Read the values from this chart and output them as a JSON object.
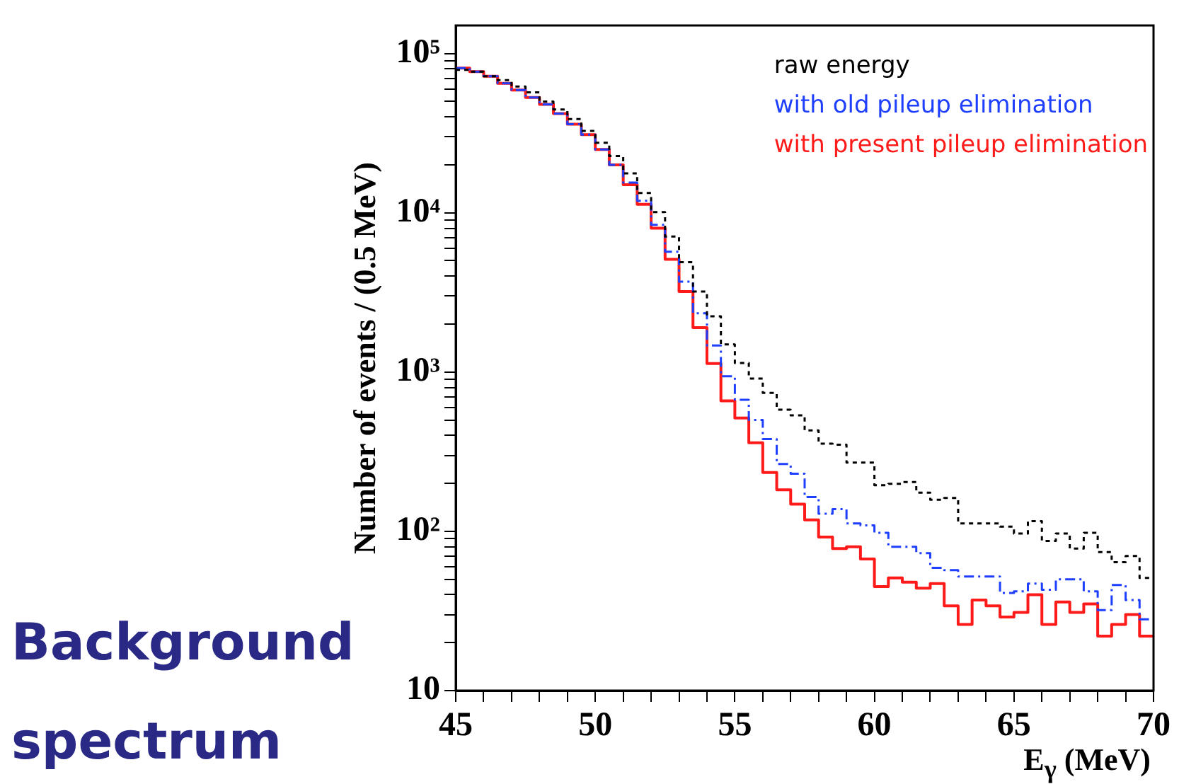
{
  "chart_data": {
    "type": "histogram",
    "title": "Background spectrum",
    "xlabel": "E$_{γ}$ (MeV)",
    "ylabel": "Number of events / (0.5 MeV)",
    "log": "y",
    "legend": "top right",
    "grid": false,
    "bins": [
      45,
      45.5,
      46,
      46.5,
      47,
      47.5,
      48,
      48.5,
      49,
      49.5,
      50,
      50.5,
      51,
      51.5,
      52,
      52.5,
      53,
      53.5,
      54,
      54.5,
      55,
      55.5,
      56,
      56.5,
      57,
      57.5,
      58,
      58.5,
      59,
      59.5,
      60,
      60.5,
      61,
      61.5,
      62,
      62.5,
      63,
      63.5,
      64,
      64.5,
      65,
      65.5,
      66,
      66.5,
      67,
      67.5,
      68,
      68.5,
      69,
      69.5,
      70
    ],
    "xlim": [
      45,
      70
    ],
    "ylim": [
      10,
      150000
    ],
    "xticks": [
      45,
      {
        "value": 46,
        "label": null
      },
      {
        "value": 47,
        "label": null
      },
      {
        "value": 48,
        "label": null
      },
      {
        "value": 49,
        "label": null
      },
      50,
      {
        "value": 51,
        "label": null
      },
      {
        "value": 52,
        "label": null
      },
      {
        "value": 53,
        "label": null
      },
      {
        "value": 54,
        "label": null
      },
      55,
      {
        "value": 56,
        "label": null
      },
      {
        "value": 57,
        "label": null
      },
      {
        "value": 58,
        "label": null
      },
      {
        "value": 59,
        "label": null
      },
      60,
      {
        "value": 61,
        "label": null
      },
      {
        "value": 62,
        "label": null
      },
      {
        "value": 63,
        "label": null
      },
      {
        "value": 64,
        "label": null
      },
      65,
      {
        "value": 66,
        "label": null
      },
      {
        "value": 67,
        "label": null
      },
      {
        "value": 68,
        "label": null
      },
      {
        "value": 69,
        "label": null
      },
      70
    ],
    "yticks": [
      10,
      {
        "value": 20,
        "label": null
      },
      {
        "value": 30,
        "label": null
      },
      {
        "value": 40,
        "label": null
      },
      {
        "value": 50,
        "label": null
      },
      {
        "value": 60,
        "label": null
      },
      {
        "value": 70,
        "label": null
      },
      {
        "value": 80,
        "label": null
      },
      {
        "value": 90,
        "label": null
      },
      {
        "value": 100,
        "label": "10²"
      },
      {
        "value": 200,
        "label": null
      },
      {
        "value": 300,
        "label": null
      },
      {
        "value": 400,
        "label": null
      },
      {
        "value": 500,
        "label": null
      },
      {
        "value": 600,
        "label": null
      },
      {
        "value": 700,
        "label": null
      },
      {
        "value": 800,
        "label": null
      },
      {
        "value": 900,
        "label": null
      },
      {
        "value": 1000,
        "label": "10³"
      },
      {
        "value": 2000,
        "label": null
      },
      {
        "value": 3000,
        "label": null
      },
      {
        "value": 4000,
        "label": null
      },
      {
        "value": 5000,
        "label": null
      },
      {
        "value": 6000,
        "label": null
      },
      {
        "value": 7000,
        "label": null
      },
      {
        "value": 8000,
        "label": null
      },
      {
        "value": 9000,
        "label": null
      },
      {
        "value": 10000,
        "label": "10⁴"
      },
      {
        "value": 20000,
        "label": null
      },
      {
        "value": 30000,
        "label": null
      },
      {
        "value": 40000,
        "label": null
      },
      {
        "value": 50000,
        "label": null
      },
      {
        "value": 60000,
        "label": null
      },
      {
        "value": 70000,
        "label": null
      },
      {
        "value": 80000,
        "label": null
      },
      {
        "value": 90000,
        "label": null
      },
      {
        "value": 100000,
        "label": "10⁵"
      }
    ],
    "series": [
      {
        "name": "raw energy",
        "color": "#000000",
        "line_style": "dotted",
        "values": [
          79000,
          77000,
          72000,
          68000,
          62000,
          57000,
          50000,
          44500,
          38800,
          32700,
          27500,
          22700,
          17700,
          13300,
          10100,
          7100,
          4900,
          3200,
          2240,
          1490,
          1140,
          910,
          740,
          580,
          535,
          430,
          355,
          350,
          270,
          270,
          195,
          199,
          204,
          175,
          158,
          162,
          112,
          112,
          112,
          107,
          97,
          116,
          87,
          97,
          78,
          98,
          74,
          64,
          70,
          51
        ]
      },
      {
        "name": "with old pileup elimination",
        "color": "#1f3fff",
        "line_style": "dashed",
        "values": [
          81000,
          77000,
          72000,
          65000,
          59000,
          53000,
          48000,
          42000,
          36000,
          31000,
          25000,
          20000,
          15500,
          11900,
          8400,
          5700,
          3700,
          2340,
          1470,
          940,
          670,
          500,
          380,
          265,
          230,
          164,
          129,
          138,
          112,
          109,
          98,
          80,
          80,
          73,
          59,
          57,
          52,
          52,
          52,
          41,
          42,
          47,
          43,
          50,
          50,
          42,
          32,
          46,
          37,
          28
        ]
      },
      {
        "name": "with present pileup elimination",
        "color": "#ff1a1a",
        "line_style": "solid",
        "values": [
          81000,
          77000,
          72000,
          65000,
          59000,
          53000,
          48000,
          42000,
          36000,
          31000,
          25000,
          20000,
          15000,
          11300,
          8000,
          5100,
          3200,
          1900,
          1130,
          660,
          515,
          360,
          234,
          182,
          148,
          118,
          92,
          78,
          80,
          67,
          45,
          51,
          48,
          44,
          47,
          34,
          26,
          37,
          34,
          29,
          31,
          40,
          26,
          36,
          31,
          35,
          22,
          26,
          30,
          22
        ]
      }
    ]
  }
}
